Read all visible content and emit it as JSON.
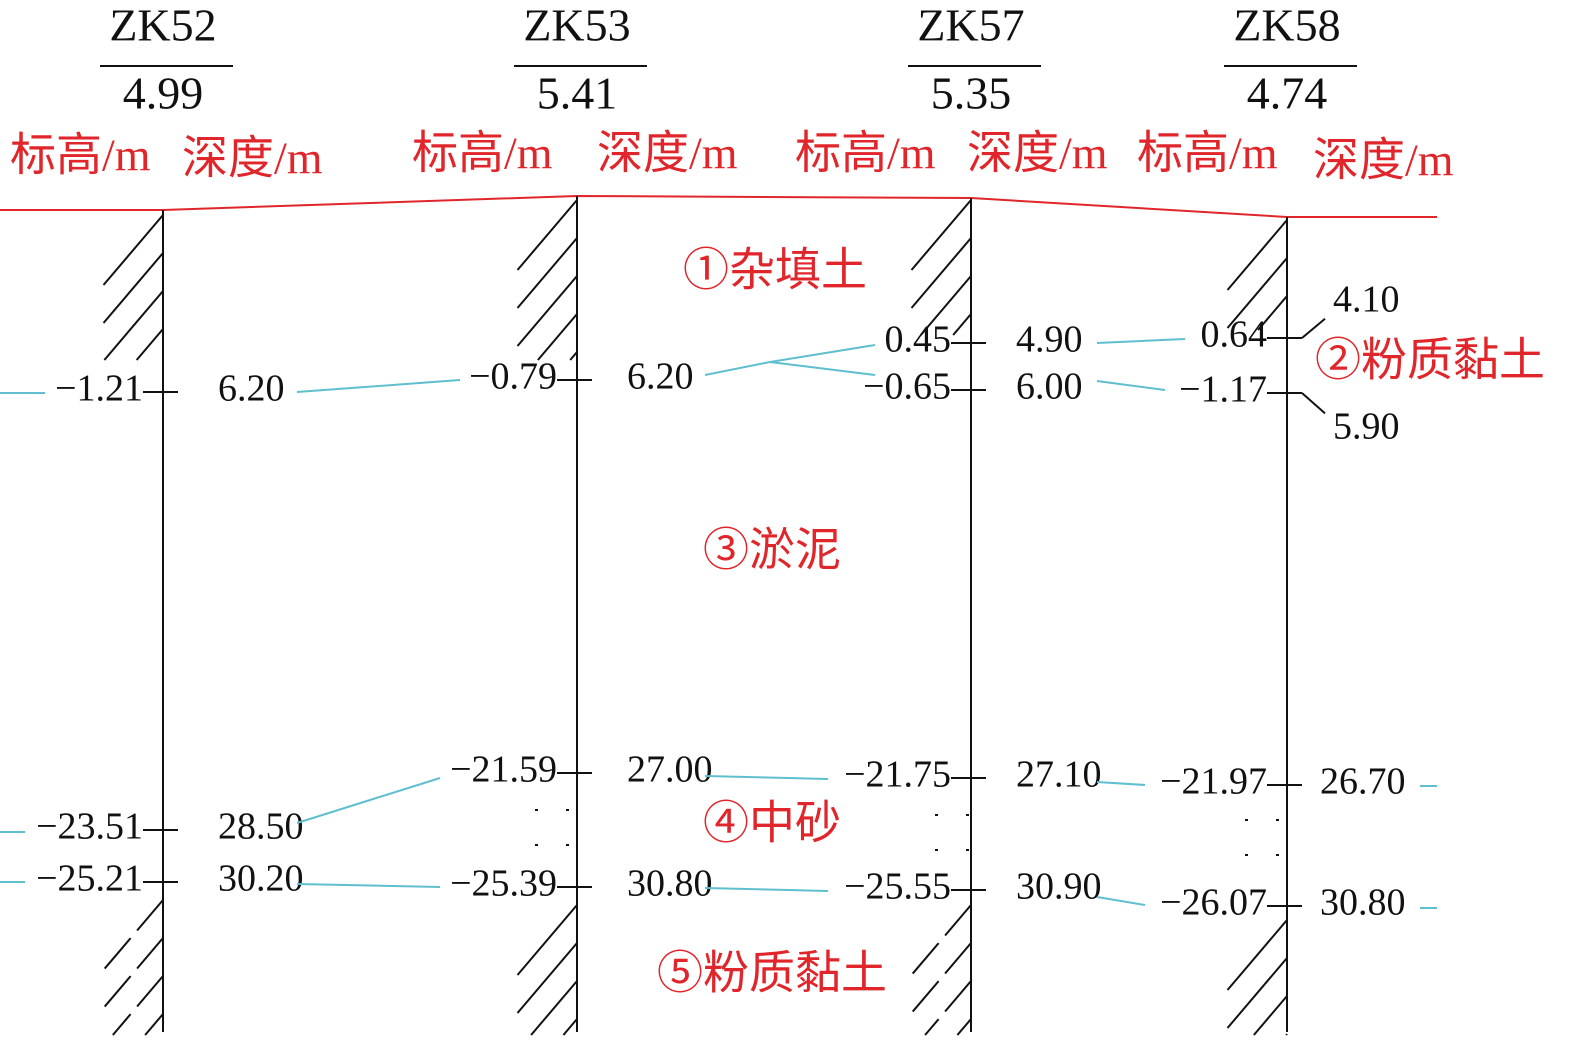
{
  "boreholes": [
    {
      "name": "ZK52",
      "elevation": "4.99",
      "elevation_header": "标高/m",
      "depth_header": "深度/m",
      "levels": [
        {
          "elevation": "−1.21",
          "depth": "6.20"
        },
        {
          "elevation": "−23.51",
          "depth": "28.50"
        },
        {
          "elevation": "−25.21",
          "depth": "30.20"
        }
      ]
    },
    {
      "name": "ZK53",
      "elevation": "5.41",
      "elevation_header": "标高/m",
      "depth_header": "深度/m",
      "levels": [
        {
          "elevation": "−0.79",
          "depth": "6.20"
        },
        {
          "elevation": "−21.59",
          "depth": "27.00"
        },
        {
          "elevation": "−25.39",
          "depth": "30.80"
        }
      ]
    },
    {
      "name": "ZK57",
      "elevation": "5.35",
      "elevation_header": "标高/m",
      "depth_header": "深度/m",
      "levels": [
        {
          "elevation": "0.45",
          "depth": "4.90"
        },
        {
          "elevation": "−0.65",
          "depth": "6.00"
        },
        {
          "elevation": "−21.75",
          "depth": "27.10"
        },
        {
          "elevation": "−25.55",
          "depth": "30.90"
        }
      ]
    },
    {
      "name": "ZK58",
      "elevation": "4.74",
      "elevation_header": "标高/m",
      "depth_header": "深度/m",
      "levels": [
        {
          "elevation": "0.64",
          "depth": "4.10"
        },
        {
          "elevation": "−1.17",
          "depth": "5.90"
        },
        {
          "elevation": "−21.97",
          "depth": "26.70"
        },
        {
          "elevation": "−26.07",
          "depth": "30.80"
        }
      ]
    }
  ],
  "layers": [
    "①杂填土",
    "②粉质黏土",
    "③淤泥",
    "④中砂",
    "⑤粉质黏土"
  ]
}
